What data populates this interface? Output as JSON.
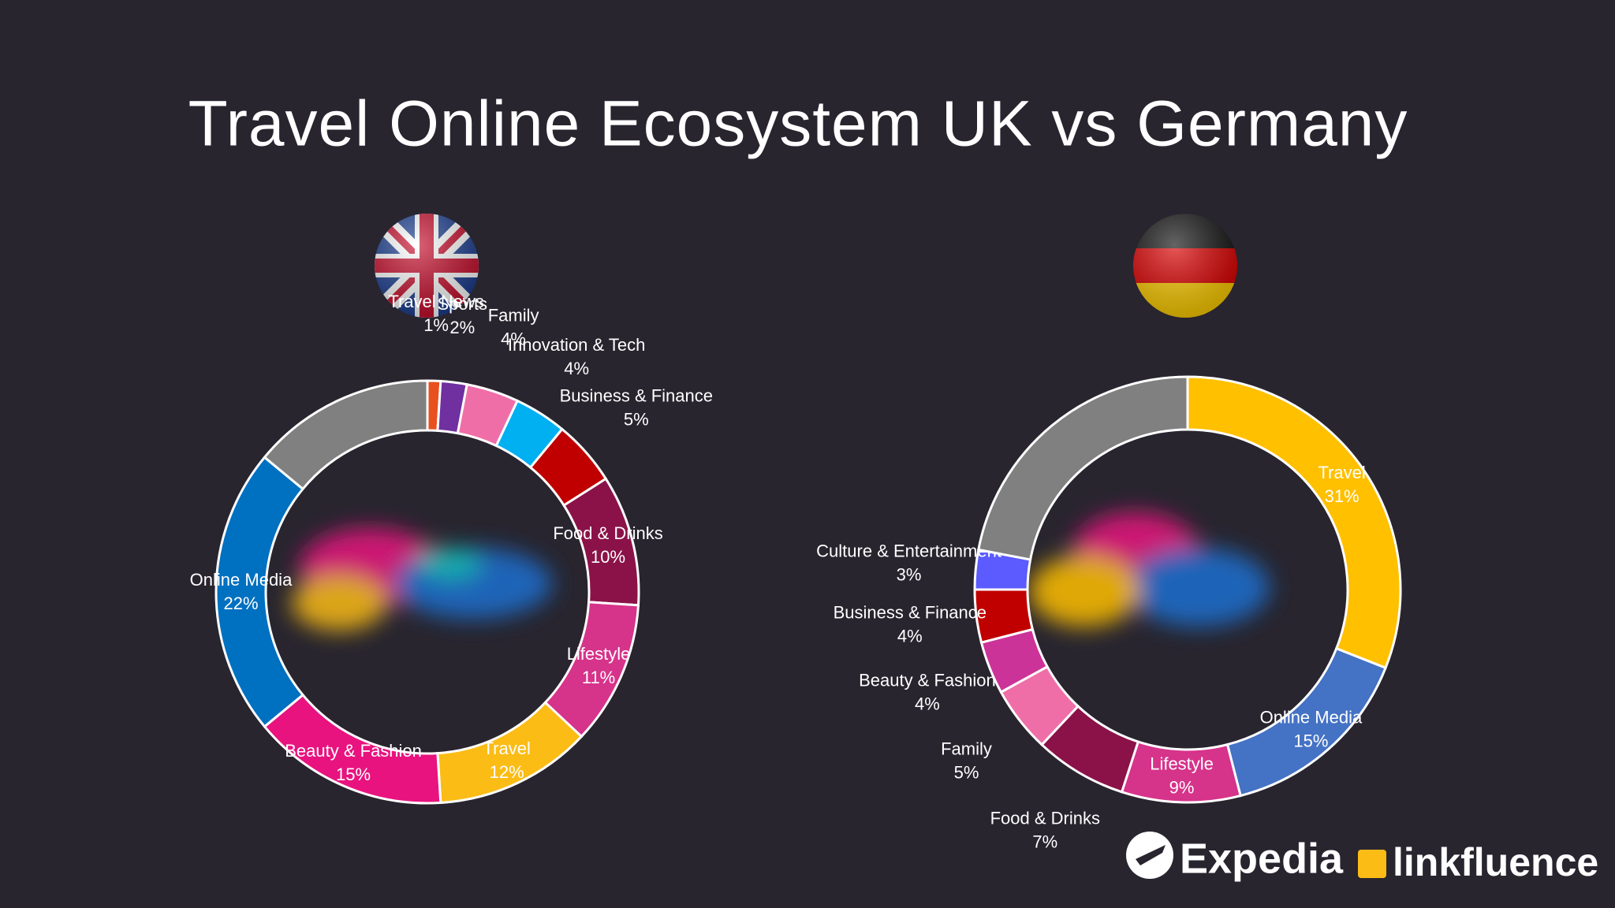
{
  "title": "Travel Online Ecosystem UK vs Germany",
  "logos": [
    "Expedia",
    "linkfluence"
  ],
  "chart_data": [
    {
      "type": "donut",
      "categories": [
        "Travel News",
        "Sports",
        "Family",
        "Innovation & Tech",
        "Business & Finance",
        "Food & Drinks",
        "Lifestyle",
        "Travel",
        "Beauty & Fashion",
        "Online Media",
        null
      ],
      "values": [
        1,
        2,
        4,
        4,
        5,
        10,
        11,
        12,
        15,
        22,
        14
      ],
      "value_labels": [
        "1%",
        "2%",
        "4%",
        "4%",
        "5%",
        "10%",
        "11%",
        "12%",
        "15%",
        "22%",
        null
      ],
      "colors": [
        "#e8501f",
        "#7030a0",
        "#f06ea8",
        "#00b0f0",
        "#c00000",
        "#8b1248",
        "#d6338a",
        "#fbbc16",
        "#e8137f",
        "#0070c0",
        "#808080"
      ]
    },
    {
      "type": "donut",
      "categories": [
        "Travel",
        "Online Media",
        "Lifestyle",
        "Food & Drinks",
        "Family",
        "Beauty & Fashion",
        "Business & Finance",
        "Culture & Entertainment",
        null
      ],
      "values": [
        31,
        15,
        9,
        7,
        5,
        4,
        4,
        3,
        22
      ],
      "value_labels": [
        "31%",
        "15%",
        "9%",
        "7%",
        "5%",
        "4%",
        "4%",
        "3%",
        null
      ],
      "colors": [
        "#ffc000",
        "#4472c4",
        "#d6338a",
        "#8b1248",
        "#f06ea8",
        "#cc3399",
        "#c00000",
        "#5b5bff",
        "#808080"
      ]
    }
  ]
}
